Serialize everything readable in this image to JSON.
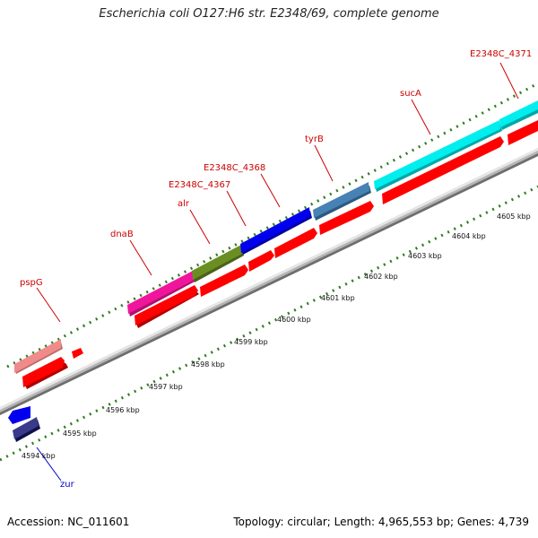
{
  "title": "Escherichia coli O127:H6 str. E2348/69, complete genome",
  "accession": "Accession: NC_011601",
  "genome_info": "Topology: circular; Length: 4,965,553 bp; Genes: 4,739",
  "colors": {
    "backbone": "#8f8f8f",
    "tick": "#2e7d1f",
    "cds": "#ff0000",
    "label": "#cc0000",
    "zur_label": "#0000cc"
  },
  "scale_labels": [
    "4594 kbp",
    "4595 kbp",
    "4596 kbp",
    "4597 kbp",
    "4598 kbp",
    "4599 kbp",
    "4600 kbp",
    "4601 kbp",
    "4602 kbp",
    "4603 kbp",
    "4604 kbp",
    "4605 kbp"
  ],
  "genes": [
    {
      "name": "pspG",
      "color": "#f08b8b"
    },
    {
      "name": "dnaB",
      "color": "#f0169c"
    },
    {
      "name": "alr",
      "color": "#6b8e23"
    },
    {
      "name": "E2348C_4367",
      "color": "#0000ee"
    },
    {
      "name": "E2348C_4368",
      "color": "#0000ee"
    },
    {
      "name": "tyrB",
      "color": "#4682b4"
    },
    {
      "name": "sucA",
      "color": "#00eeee"
    },
    {
      "name": "E2348C_4371",
      "color": "#00eeee"
    },
    {
      "name": "zur",
      "color": "#191970"
    }
  ]
}
